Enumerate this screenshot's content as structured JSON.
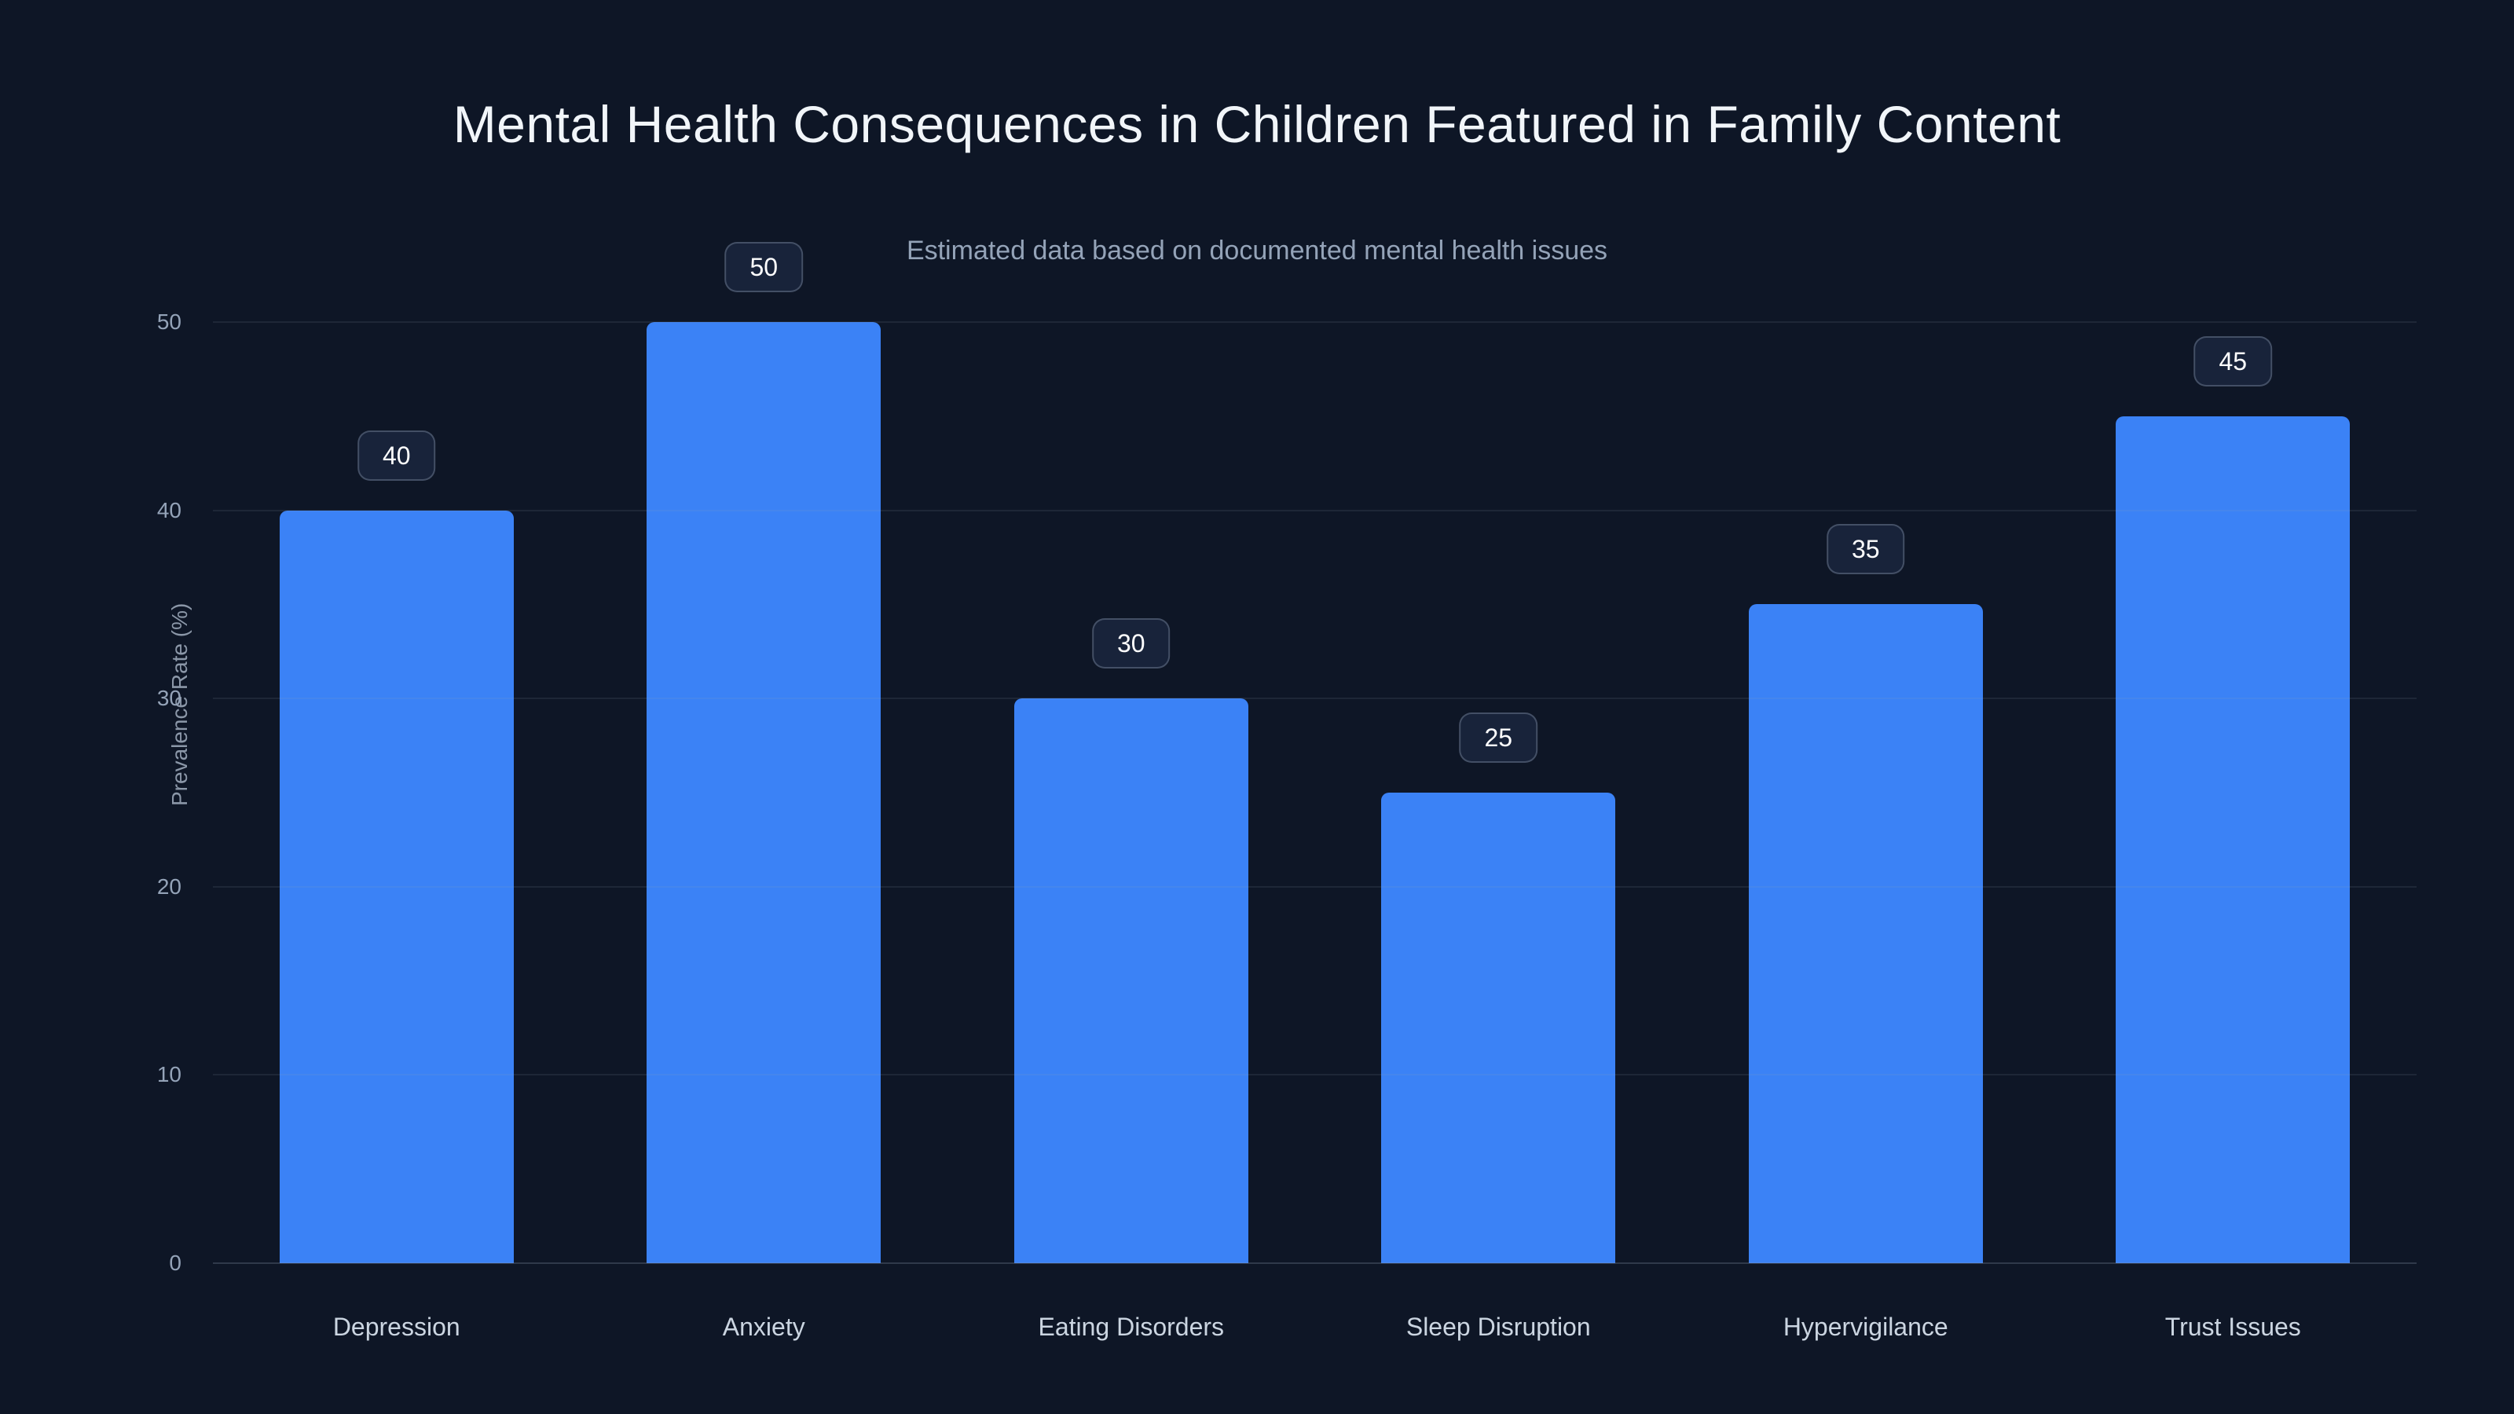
{
  "header": {
    "title": "Mental Health Consequences in Children Featured in Family Content",
    "subtitle": "Estimated data based on documented mental health issues"
  },
  "chart_data": {
    "type": "bar",
    "title": "Mental Health Consequences in Children Featured in Family Content",
    "subtitle": "Estimated data based on documented mental health issues",
    "categories": [
      "Depression",
      "Anxiety",
      "Eating Disorders",
      "Sleep Disruption",
      "Hypervigilance",
      "Trust Issues"
    ],
    "values": [
      40,
      50,
      30,
      25,
      35,
      45
    ],
    "xlabel": "",
    "ylabel": "Prevalence Rate (%)",
    "ylim": [
      0,
      50
    ],
    "yticks": [
      0,
      10,
      20,
      30,
      40,
      50
    ],
    "grid": true,
    "legend": false,
    "colors": {
      "bar": "#3b82f6",
      "background": "#0e1626",
      "title_text": "#f1f5f9",
      "subtitle_text": "#94a3b8",
      "tick_text": "#94a3b8",
      "category_text": "#cbd5e1",
      "badge_text": "#ffffff"
    }
  }
}
